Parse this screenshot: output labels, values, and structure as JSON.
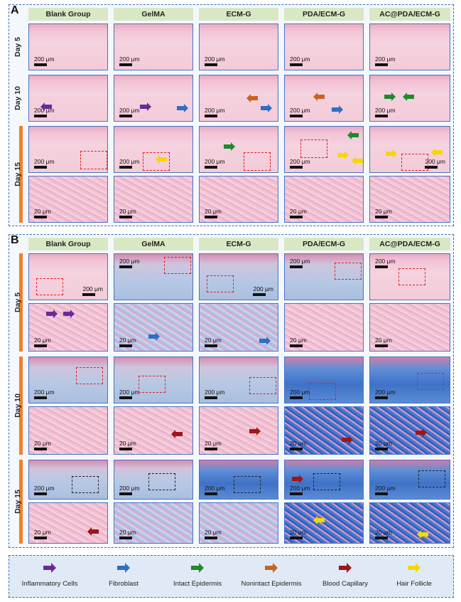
{
  "panel_a": {
    "letter": "A",
    "columns": [
      "Blank Group",
      "GelMA",
      "ECM-G",
      "PDA/ECM-G",
      "AC@PDA/ECM-G"
    ],
    "days": [
      "Day 5",
      "Day 10",
      "Day 15"
    ]
  },
  "panel_b": {
    "letter": "B",
    "columns": [
      "Blank Group",
      "GelMA",
      "ECM-G",
      "PDA/ECM-G",
      "AC@PDA/ECM-G"
    ],
    "days": [
      "Day 5",
      "Day 10",
      "Day 15"
    ]
  },
  "scale_bars": {
    "low": "200 μm",
    "high": "20 μm"
  },
  "legend": [
    {
      "label": "Inflammatory Cells",
      "color": "#6a2a9a",
      "icon": "purple-arrow-icon"
    },
    {
      "label": "Fibroblast",
      "color": "#2e6fc0",
      "icon": "blue-arrow-icon"
    },
    {
      "label": "Intact Epidermis",
      "color": "#1f8a2c",
      "icon": "green-arrow-icon"
    },
    {
      "label": "Nonintact Epidermis",
      "color": "#c8641c",
      "icon": "orange-arrow-icon"
    },
    {
      "label": "Blood Capillary",
      "color": "#a01616",
      "icon": "darkred-arrow-icon"
    },
    {
      "label": "Hair Follicle",
      "color": "#f5d800",
      "icon": "yellow-arrow-icon"
    }
  ]
}
